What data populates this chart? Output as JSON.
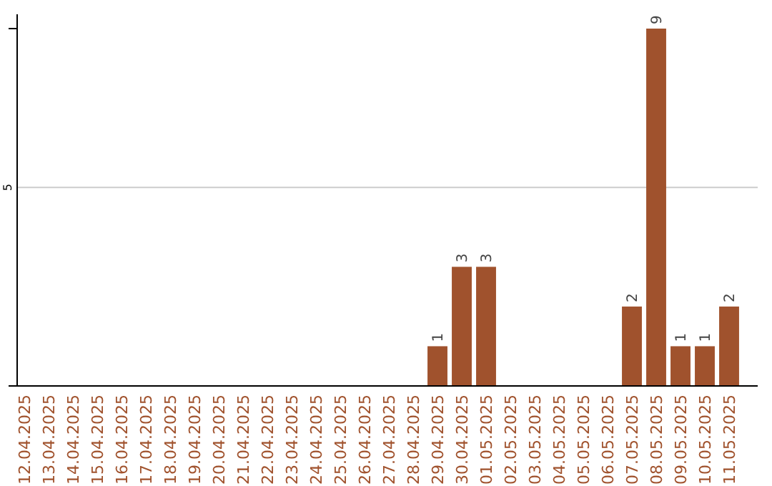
{
  "chart_data": {
    "type": "bar",
    "data_labels": true,
    "ylim": [
      0,
      9
    ],
    "categories": [
      "12.04.2025",
      "13.04.2025",
      "14.04.2025",
      "15.04.2025",
      "16.04.2025",
      "17.04.2025",
      "18.04.2025",
      "19.04.2025",
      "20.04.2025",
      "21.04.2025",
      "22.04.2025",
      "23.04.2025",
      "24.04.2025",
      "25.04.2025",
      "26.04.2025",
      "27.04.2025",
      "28.04.2025",
      "29.04.2025",
      "30.04.2025",
      "01.05.2025",
      "02.05.2025",
      "03.05.2025",
      "04.05.2025",
      "05.05.2025",
      "06.05.2025",
      "07.05.2025",
      "08.05.2025",
      "09.05.2025",
      "10.05.2025",
      "11.05.2025"
    ],
    "values": [
      null,
      null,
      null,
      null,
      null,
      null,
      null,
      null,
      null,
      null,
      null,
      null,
      null,
      null,
      null,
      null,
      null,
      1,
      3,
      3,
      null,
      null,
      null,
      null,
      null,
      2,
      9,
      1,
      1,
      2
    ],
    "color": "#a0522d",
    "ref_lines": [
      {
        "axis": "y",
        "value": 5,
        "label": "5",
        "color": "#cccccc"
      }
    ]
  }
}
